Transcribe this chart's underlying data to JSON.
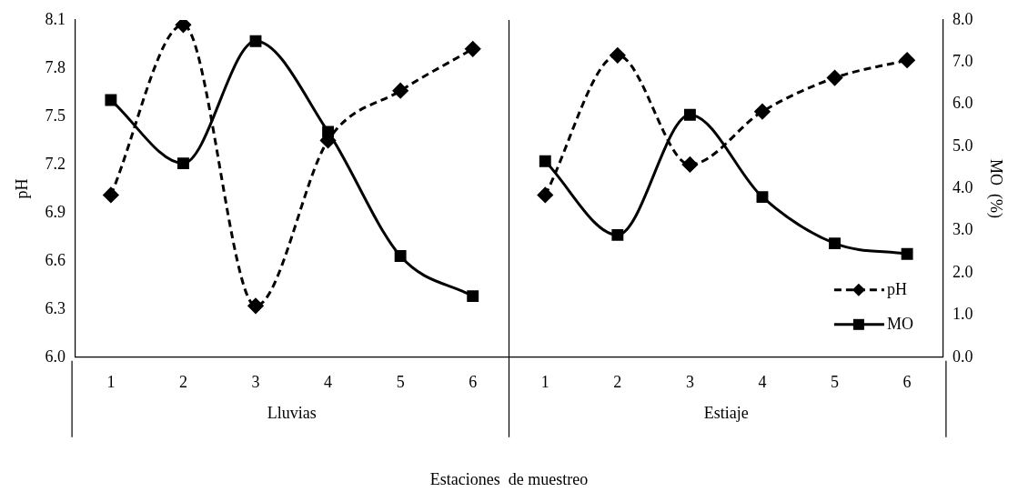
{
  "chart_data": {
    "type": "line",
    "categories": [
      "1",
      "2",
      "3",
      "4",
      "5",
      "6",
      "1",
      "2",
      "3",
      "4",
      "5",
      "6"
    ],
    "annotations": [
      "Lluvias",
      "Estiaje"
    ],
    "xlabel": "Estaciones  de muestreo",
    "ylabel": "pH",
    "y2label": "MO  (%)",
    "ylim": [
      6.0,
      8.1
    ],
    "yticks": [
      {
        "value": 6.0,
        "label": "6.0"
      },
      {
        "value": 6.3,
        "label": "6.3"
      },
      {
        "value": 6.6,
        "label": "6.6"
      },
      {
        "value": 6.9,
        "label": "6.9"
      },
      {
        "value": 7.2,
        "label": "7.2"
      },
      {
        "value": 7.5,
        "label": "7.5"
      },
      {
        "value": 7.8,
        "label": "7.8"
      },
      {
        "value": 8.1,
        "label": "8.1"
      }
    ],
    "y2lim": [
      0,
      8
    ],
    "y2ticks": [
      {
        "value": 0,
        "label": "0.0"
      },
      {
        "value": 1,
        "label": "1.0"
      },
      {
        "value": 2,
        "label": "2.0"
      },
      {
        "value": 3,
        "label": "3.0"
      },
      {
        "value": 4,
        "label": "4.0"
      },
      {
        "value": 5,
        "label": "5.0"
      },
      {
        "value": 6,
        "label": "6.0"
      },
      {
        "value": 7,
        "label": "7.0"
      },
      {
        "value": 8,
        "label": "8.0"
      }
    ],
    "legend": "bottom right",
    "series": [
      {
        "name": "pH",
        "color": "#000000",
        "marker": "diamond",
        "line_style": "dashed",
        "values": [
          7.01,
          8.07,
          6.32,
          7.35,
          7.66,
          7.92,
          null,
          null,
          null,
          null,
          null,
          null
        ]
      },
      {
        "color": "#000000",
        "marker": "diamond",
        "line_style": "dashed",
        "values": [
          null,
          null,
          null,
          null,
          null,
          null,
          7.01,
          7.88,
          7.2,
          7.53,
          7.74,
          7.85
        ]
      },
      {
        "name": "MO",
        "color": "#000000",
        "marker": "square",
        "line_style": "solid",
        "axis": "y2",
        "values": [
          6.1,
          4.6,
          7.5,
          5.35,
          2.4,
          1.45,
          null,
          null,
          null,
          null,
          null,
          null
        ]
      },
      {
        "color": "#000000",
        "marker": "square",
        "line_style": "solid",
        "axis": "y2",
        "values": [
          null,
          null,
          null,
          null,
          null,
          null,
          4.65,
          2.9,
          5.75,
          3.8,
          2.7,
          2.45
        ]
      }
    ]
  }
}
